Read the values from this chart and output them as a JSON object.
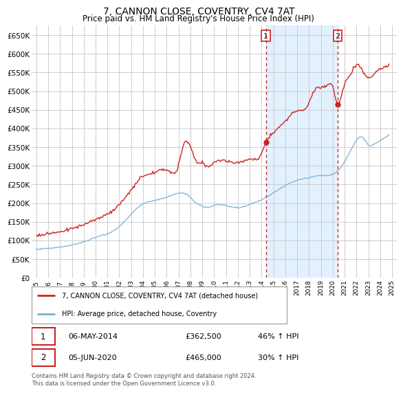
{
  "title": "7, CANNON CLOSE, COVENTRY, CV4 7AT",
  "subtitle": "Price paid vs. HM Land Registry's House Price Index (HPI)",
  "title_fontsize": 10,
  "subtitle_fontsize": 8.5,
  "ylabel_ticks": [
    "£0",
    "£50K",
    "£100K",
    "£150K",
    "£200K",
    "£250K",
    "£300K",
    "£350K",
    "£400K",
    "£450K",
    "£500K",
    "£550K",
    "£600K",
    "£650K"
  ],
  "ytick_values": [
    0,
    50000,
    100000,
    150000,
    200000,
    250000,
    300000,
    350000,
    400000,
    450000,
    500000,
    550000,
    600000,
    650000
  ],
  "ylim": [
    0,
    675000
  ],
  "background_color": "#ffffff",
  "plot_bg_color": "#ffffff",
  "grid_color": "#cccccc",
  "red_line_color": "#cc2222",
  "blue_line_color": "#7ab0d4",
  "vline_color": "#cc2222",
  "vshade_color": "#ddeeff",
  "sale1_date": 2014.37,
  "sale1_price": 362500,
  "sale2_date": 2020.42,
  "sale2_price": 465000,
  "legend_entries": [
    "7, CANNON CLOSE, COVENTRY, CV4 7AT (detached house)",
    "HPI: Average price, detached house, Coventry"
  ],
  "table_row1": [
    "1",
    "06-MAY-2014",
    "£362,500",
    "46% ↑ HPI"
  ],
  "table_row2": [
    "2",
    "05-JUN-2020",
    "£465,000",
    "30% ↑ HPI"
  ],
  "footer": "Contains HM Land Registry data © Crown copyright and database right 2024.\nThis data is licensed under the Open Government Licence v3.0.",
  "xtick_years": [
    1995,
    1996,
    1997,
    1998,
    1999,
    2000,
    2001,
    2002,
    2003,
    2004,
    2005,
    2006,
    2007,
    2008,
    2009,
    2010,
    2011,
    2012,
    2013,
    2014,
    2015,
    2016,
    2017,
    2018,
    2019,
    2020,
    2021,
    2022,
    2023,
    2024,
    2025
  ]
}
